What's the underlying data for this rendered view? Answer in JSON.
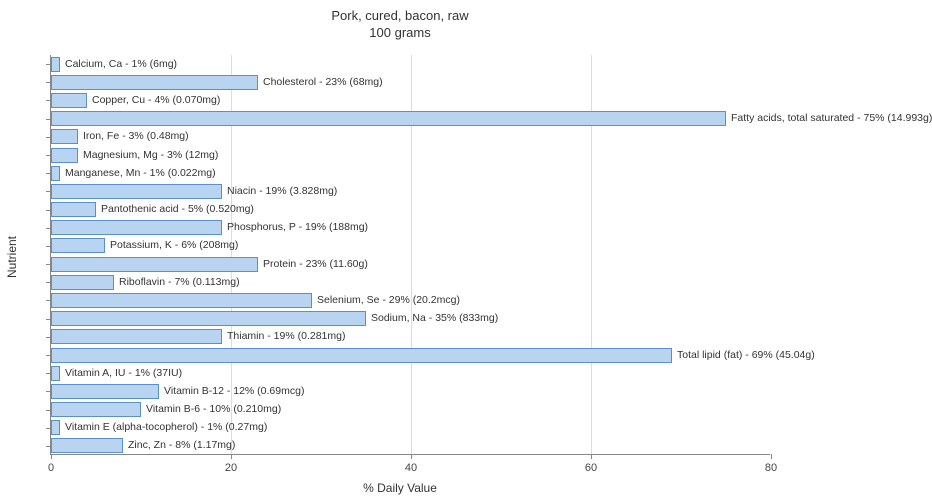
{
  "title_line1": "Pork, cured, bacon, raw",
  "title_line2": "100 grams",
  "xlabel": "% Daily Value",
  "ylabel": "Nutrient",
  "chart": {
    "type": "bar-horizontal",
    "xlim": [
      0,
      80
    ],
    "xtick_step": 20,
    "xticks": [
      0,
      20,
      40,
      60,
      80
    ],
    "bar_color": "#b8d4f0",
    "bar_border_color": "#5a8fc7",
    "background_color": "#ffffff",
    "grid_color": "#dddddd",
    "axis_color": "#888888",
    "label_fontsize": 10.5,
    "title_fontsize": 13,
    "axis_label_fontsize": 12
  },
  "nutrients": [
    {
      "label": "Calcium, Ca - 1% (6mg)",
      "value": 1
    },
    {
      "label": "Cholesterol - 23% (68mg)",
      "value": 23
    },
    {
      "label": "Copper, Cu - 4% (0.070mg)",
      "value": 4
    },
    {
      "label": "Fatty acids, total saturated - 75% (14.993g)",
      "value": 75
    },
    {
      "label": "Iron, Fe - 3% (0.48mg)",
      "value": 3
    },
    {
      "label": "Magnesium, Mg - 3% (12mg)",
      "value": 3
    },
    {
      "label": "Manganese, Mn - 1% (0.022mg)",
      "value": 1
    },
    {
      "label": "Niacin - 19% (3.828mg)",
      "value": 19
    },
    {
      "label": "Pantothenic acid - 5% (0.520mg)",
      "value": 5
    },
    {
      "label": "Phosphorus, P - 19% (188mg)",
      "value": 19
    },
    {
      "label": "Potassium, K - 6% (208mg)",
      "value": 6
    },
    {
      "label": "Protein - 23% (11.60g)",
      "value": 23
    },
    {
      "label": "Riboflavin - 7% (0.113mg)",
      "value": 7
    },
    {
      "label": "Selenium, Se - 29% (20.2mcg)",
      "value": 29
    },
    {
      "label": "Sodium, Na - 35% (833mg)",
      "value": 35
    },
    {
      "label": "Thiamin - 19% (0.281mg)",
      "value": 19
    },
    {
      "label": "Total lipid (fat) - 69% (45.04g)",
      "value": 69
    },
    {
      "label": "Vitamin A, IU - 1% (37IU)",
      "value": 1
    },
    {
      "label": "Vitamin B-12 - 12% (0.69mcg)",
      "value": 12
    },
    {
      "label": "Vitamin B-6 - 10% (0.210mg)",
      "value": 10
    },
    {
      "label": "Vitamin E (alpha-tocopherol) - 1% (0.27mg)",
      "value": 1
    },
    {
      "label": "Zinc, Zn - 8% (1.17mg)",
      "value": 8
    }
  ]
}
